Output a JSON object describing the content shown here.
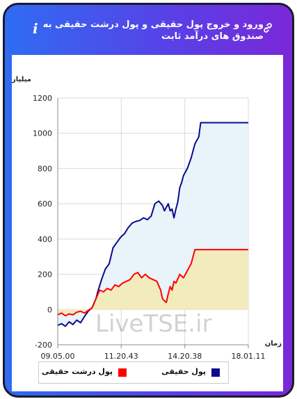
{
  "header": {
    "title": "ورود و خروج پول حقیقی و پول درشت حقیقی به صندوق های درآمد ثابت"
  },
  "icons": {
    "info": "info-icon",
    "link": "link-icon"
  },
  "colors": {
    "real_money": "#0a0a8c",
    "big_real_money": "#ff0000",
    "real_fill": "#e8f3fa",
    "big_fill": "#f1ebbd",
    "frame_gradient_start": "#2f6cf3",
    "frame_gradient_end": "#7a28d8"
  },
  "watermark": "LiveTSE.ir",
  "legend": {
    "real": "پول حقیقی",
    "big_real": "پول درشت حقیقی"
  },
  "chart_data": {
    "type": "area",
    "ylabel": "میلیارد تومان",
    "xlabel": "زمان",
    "ylim": [
      -200,
      1200
    ],
    "yticks": [
      -200,
      0,
      200,
      400,
      600,
      800,
      1000,
      1200
    ],
    "xtick_labels": [
      "09.05.00",
      "11.20.43",
      "14.20.38",
      "18.01.11"
    ],
    "grid": true,
    "legend_position": "bottom",
    "x_domain": [
      0,
      100
    ],
    "xtick_positions": [
      0,
      33.3,
      66.7,
      100
    ],
    "series": [
      {
        "name": "پول حقیقی",
        "color": "#0a0a8c",
        "fill": "#e8f3fa",
        "x": [
          0,
          2,
          4,
          6,
          8,
          10,
          12,
          14,
          16,
          18,
          20,
          21,
          23,
          25,
          27,
          29,
          31,
          33,
          35,
          37,
          39,
          41,
          43,
          45,
          47,
          49,
          51,
          53,
          55,
          56,
          58,
          59,
          60,
          61,
          62,
          63,
          64,
          65,
          66,
          68,
          69,
          70,
          71,
          72,
          74,
          75,
          76,
          77,
          78,
          79,
          80,
          100
        ],
        "values": [
          -90,
          -80,
          -95,
          -70,
          -85,
          -60,
          -75,
          -40,
          -10,
          10,
          60,
          100,
          170,
          230,
          260,
          350,
          380,
          410,
          430,
          465,
          490,
          500,
          505,
          520,
          510,
          530,
          600,
          615,
          590,
          560,
          600,
          560,
          570,
          520,
          570,
          610,
          690,
          720,
          760,
          800,
          830,
          860,
          900,
          940,
          980,
          1060,
          1060,
          1060,
          1060,
          1060,
          1060,
          1060
        ]
      },
      {
        "name": "پول درشت حقیقی",
        "color": "#ff0000",
        "fill": "#f1ebbd",
        "x": [
          0,
          2,
          4,
          6,
          8,
          10,
          12,
          14,
          16,
          18,
          20,
          22,
          24,
          26,
          28,
          30,
          32,
          34,
          36,
          38,
          40,
          42,
          44,
          46,
          48,
          50,
          52,
          54,
          55,
          57,
          58,
          59,
          60,
          61,
          62,
          64,
          66,
          68,
          70,
          71,
          72,
          74,
          80,
          100
        ],
        "values": [
          -30,
          -20,
          -35,
          -25,
          -30,
          -15,
          -10,
          -20,
          -5,
          10,
          60,
          110,
          100,
          120,
          110,
          140,
          130,
          150,
          160,
          170,
          200,
          210,
          180,
          200,
          180,
          170,
          160,
          110,
          60,
          40,
          90,
          130,
          110,
          160,
          150,
          200,
          180,
          220,
          260,
          300,
          340,
          340,
          340,
          340
        ]
      }
    ]
  }
}
